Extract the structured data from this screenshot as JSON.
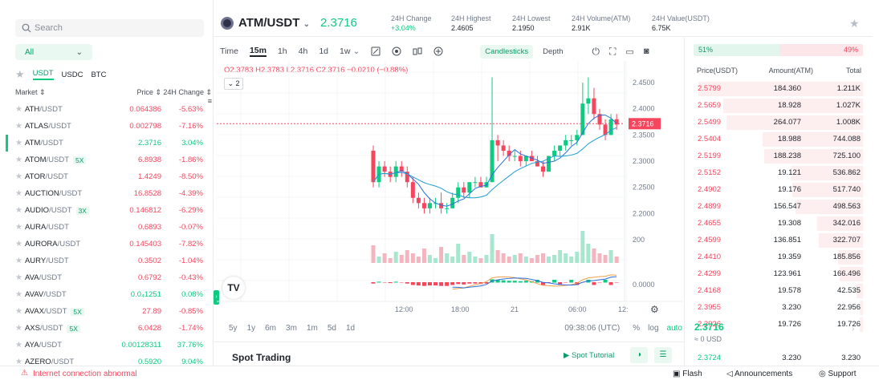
{
  "search": {
    "placeholder": "Search"
  },
  "filter": {
    "selected": "All"
  },
  "quote_tabs": [
    "USDT",
    "USDC",
    "BTC"
  ],
  "market_header": {
    "market": "Market",
    "price": "Price",
    "change": "24H Change"
  },
  "markets": [
    {
      "base": "ATH",
      "quote": "/USDT",
      "badge": "",
      "price": "0.064386",
      "change": "-5.63%",
      "dir": "down"
    },
    {
      "base": "ATLAS",
      "quote": "/USDT",
      "badge": "",
      "price": "0.002798",
      "change": "-7.16%",
      "dir": "down"
    },
    {
      "base": "ATM",
      "quote": "/USDT",
      "badge": "",
      "price": "2.3716",
      "change": "3.04%",
      "dir": "up"
    },
    {
      "base": "ATOM",
      "quote": "/USDT",
      "badge": "5X",
      "price": "6.8938",
      "change": "-1.86%",
      "dir": "down"
    },
    {
      "base": "ATOR",
      "quote": "/USDT",
      "badge": "",
      "price": "1.4249",
      "change": "-8.50%",
      "dir": "down"
    },
    {
      "base": "AUCTION",
      "quote": "/USDT",
      "badge": "",
      "price": "16.8528",
      "change": "-4.39%",
      "dir": "down"
    },
    {
      "base": "AUDIO",
      "quote": "/USDT",
      "badge": "3X",
      "price": "0.146812",
      "change": "-6.29%",
      "dir": "down"
    },
    {
      "base": "AURA",
      "quote": "/USDT",
      "badge": "",
      "price": "0.6893",
      "change": "-0.07%",
      "dir": "down"
    },
    {
      "base": "AURORA",
      "quote": "/USDT",
      "badge": "",
      "price": "0.145403",
      "change": "-7.82%",
      "dir": "down"
    },
    {
      "base": "AURY",
      "quote": "/USDT",
      "badge": "",
      "price": "0.3502",
      "change": "-1.04%",
      "dir": "down"
    },
    {
      "base": "AVA",
      "quote": "/USDT",
      "badge": "",
      "price": "0.6792",
      "change": "-0.43%",
      "dir": "down"
    },
    {
      "base": "AVAV",
      "quote": "/USDT",
      "badge": "",
      "price": "0.0₄1251",
      "change": "0.08%",
      "dir": "up"
    },
    {
      "base": "AVAX",
      "quote": "/USDT",
      "badge": "5X",
      "price": "27.89",
      "change": "-0.85%",
      "dir": "down"
    },
    {
      "base": "AXS",
      "quote": "/USDT",
      "badge": "5X",
      "price": "6.0428",
      "change": "-1.74%",
      "dir": "down"
    },
    {
      "base": "AYA",
      "quote": "/USDT",
      "badge": "",
      "price": "0.00128311",
      "change": "37.76%",
      "dir": "up"
    },
    {
      "base": "AZERO",
      "quote": "/USDT",
      "badge": "",
      "price": "0.5920",
      "change": "9.04%",
      "dir": "up"
    }
  ],
  "pair": {
    "name": "ATM/USDT",
    "price": "2.3716"
  },
  "stats": [
    {
      "label": "24H Change",
      "value": "+3.04%",
      "color": "#0ecb81"
    },
    {
      "label": "24H Highest",
      "value": "2.4605",
      "color": "#1e2329"
    },
    {
      "label": "24H Lowest",
      "value": "2.1950",
      "color": "#1e2329"
    },
    {
      "label": "24H Volume(ATM)",
      "value": "2.91K",
      "color": "#1e2329"
    },
    {
      "label": "24H Value(USDT)",
      "value": "6.75K",
      "color": "#1e2329"
    }
  ],
  "toolbar": {
    "intervals": [
      "Time",
      "15m",
      "1h",
      "4h",
      "1d",
      "1w"
    ],
    "active": "15m",
    "candlesticks": "Candlesticks",
    "depth": "Depth",
    "indicator_count": "2"
  },
  "ohlc": "O2.3783 H2.3783 L2.3716 C2.3716 −0.0210 (−0.88%)",
  "chart_data": {
    "type": "candlestick",
    "ylim": [
      2.17,
      2.47
    ],
    "yticks": [
      "2.4500",
      "2.4000",
      "2.3500",
      "2.3000",
      "2.2500",
      "2.2000"
    ],
    "current_price_label": "2.3716",
    "volume_tick": "200",
    "macd_tick": "0.0000",
    "xticks": [
      "12:00",
      "18:00",
      "21",
      "06:00",
      "12:"
    ],
    "candles": [
      [
        2.32,
        2.33,
        2.25,
        2.26
      ],
      [
        2.26,
        2.3,
        2.25,
        2.29
      ],
      [
        2.29,
        2.3,
        2.27,
        2.28
      ],
      [
        2.28,
        2.29,
        2.26,
        2.27
      ],
      [
        2.27,
        2.3,
        2.26,
        2.29
      ],
      [
        2.29,
        2.3,
        2.27,
        2.28
      ],
      [
        2.28,
        2.29,
        2.25,
        2.26
      ],
      [
        2.26,
        2.27,
        2.22,
        2.23
      ],
      [
        2.23,
        2.24,
        2.21,
        2.22
      ],
      [
        2.22,
        2.23,
        2.2,
        2.21
      ],
      [
        2.21,
        2.23,
        2.2,
        2.22
      ],
      [
        2.22,
        2.23,
        2.21,
        2.22
      ],
      [
        2.22,
        2.24,
        2.2,
        2.21
      ],
      [
        2.21,
        2.22,
        2.2,
        2.21
      ],
      [
        2.21,
        2.24,
        2.21,
        2.23
      ],
      [
        2.23,
        2.26,
        2.22,
        2.25
      ],
      [
        2.25,
        2.26,
        2.23,
        2.24
      ],
      [
        2.24,
        2.26,
        2.23,
        2.26
      ],
      [
        2.26,
        2.27,
        2.25,
        2.26
      ],
      [
        2.26,
        2.27,
        2.25,
        2.25
      ],
      [
        2.25,
        2.27,
        2.25,
        2.26
      ],
      [
        2.26,
        2.46,
        2.26,
        2.34
      ],
      [
        2.34,
        2.35,
        2.3,
        2.33
      ],
      [
        2.33,
        2.34,
        2.31,
        2.32
      ],
      [
        2.32,
        2.33,
        2.3,
        2.31
      ],
      [
        2.31,
        2.32,
        2.3,
        2.31
      ],
      [
        2.31,
        2.32,
        2.29,
        2.3
      ],
      [
        2.3,
        2.31,
        2.29,
        2.31
      ],
      [
        2.31,
        2.32,
        2.3,
        2.3
      ],
      [
        2.3,
        2.31,
        2.29,
        2.29
      ],
      [
        2.29,
        2.3,
        2.27,
        2.28
      ],
      [
        2.28,
        2.31,
        2.28,
        2.31
      ],
      [
        2.31,
        2.33,
        2.3,
        2.32
      ],
      [
        2.32,
        2.33,
        2.31,
        2.33
      ],
      [
        2.33,
        2.35,
        2.32,
        2.34
      ],
      [
        2.34,
        2.35,
        2.33,
        2.34
      ],
      [
        2.34,
        2.36,
        2.33,
        2.35
      ],
      [
        2.35,
        2.45,
        2.35,
        2.41
      ],
      [
        2.41,
        2.46,
        2.39,
        2.42
      ],
      [
        2.42,
        2.44,
        2.38,
        2.39
      ],
      [
        2.39,
        2.4,
        2.36,
        2.37
      ],
      [
        2.37,
        2.38,
        2.34,
        2.35
      ],
      [
        2.35,
        2.39,
        2.35,
        2.38
      ],
      [
        2.38,
        2.39,
        2.36,
        2.37
      ]
    ],
    "volumes": [
      55,
      20,
      30,
      15,
      35,
      25,
      40,
      30,
      20,
      45,
      25,
      15,
      50,
      30,
      20,
      60,
      25,
      35,
      20,
      15,
      25,
      90,
      40,
      30,
      20,
      25,
      30,
      20,
      15,
      25,
      30,
      20,
      25,
      40,
      30,
      20,
      35,
      100,
      60,
      45,
      30,
      25,
      40,
      20
    ]
  },
  "ranges": [
    "5y",
    "1y",
    "6m",
    "3m",
    "1m",
    "5d",
    "1d"
  ],
  "chart_footer": {
    "time": "09:38:06 (UTC)",
    "percent": "%",
    "log": "log",
    "auto": "auto"
  },
  "spot": {
    "title": "Spot Trading",
    "tutorial": "Spot Tutorial"
  },
  "orderbook": {
    "buy_pct": "51%",
    "sell_pct": "49%",
    "header": {
      "price": "Price(USDT)",
      "amount": "Amount(ATM)",
      "total": "Total"
    },
    "asks": [
      {
        "price": "2.5799",
        "amount": "184.360",
        "total": "1.211K",
        "depth": 1.0
      },
      {
        "price": "2.5659",
        "amount": "18.928",
        "total": "1.027K",
        "depth": 0.85
      },
      {
        "price": "2.5499",
        "amount": "264.077",
        "total": "1.008K",
        "depth": 0.83
      },
      {
        "price": "2.5404",
        "amount": "18.988",
        "total": "744.088",
        "depth": 0.61
      },
      {
        "price": "2.5199",
        "amount": "188.238",
        "total": "725.100",
        "depth": 0.6
      },
      {
        "price": "2.5152",
        "amount": "19.121",
        "total": "536.862",
        "depth": 0.44
      },
      {
        "price": "2.4902",
        "amount": "19.176",
        "total": "517.740",
        "depth": 0.43
      },
      {
        "price": "2.4899",
        "amount": "156.547",
        "total": "498.563",
        "depth": 0.41
      },
      {
        "price": "2.4655",
        "amount": "19.308",
        "total": "342.016",
        "depth": 0.28
      },
      {
        "price": "2.4599",
        "amount": "136.851",
        "total": "322.707",
        "depth": 0.27
      },
      {
        "price": "2.4410",
        "amount": "19.359",
        "total": "185.856",
        "depth": 0.15
      },
      {
        "price": "2.4299",
        "amount": "123.961",
        "total": "166.496",
        "depth": 0.14
      },
      {
        "price": "2.4168",
        "amount": "19.578",
        "total": "42.535",
        "depth": 0.04
      },
      {
        "price": "2.3955",
        "amount": "3.230",
        "total": "22.956",
        "depth": 0.02
      },
      {
        "price": "2.3926",
        "amount": "19.726",
        "total": "19.726",
        "depth": 0.02
      }
    ],
    "mid_price": "2.3716",
    "mid_usd": "≈ 0 USD",
    "bid": {
      "price": "2.3724",
      "amount": "3.230",
      "total": "3.230"
    }
  },
  "status": {
    "connection": "Internet connection abnormal",
    "flash": "Flash",
    "announcements": "Announcements",
    "support": "Support"
  }
}
